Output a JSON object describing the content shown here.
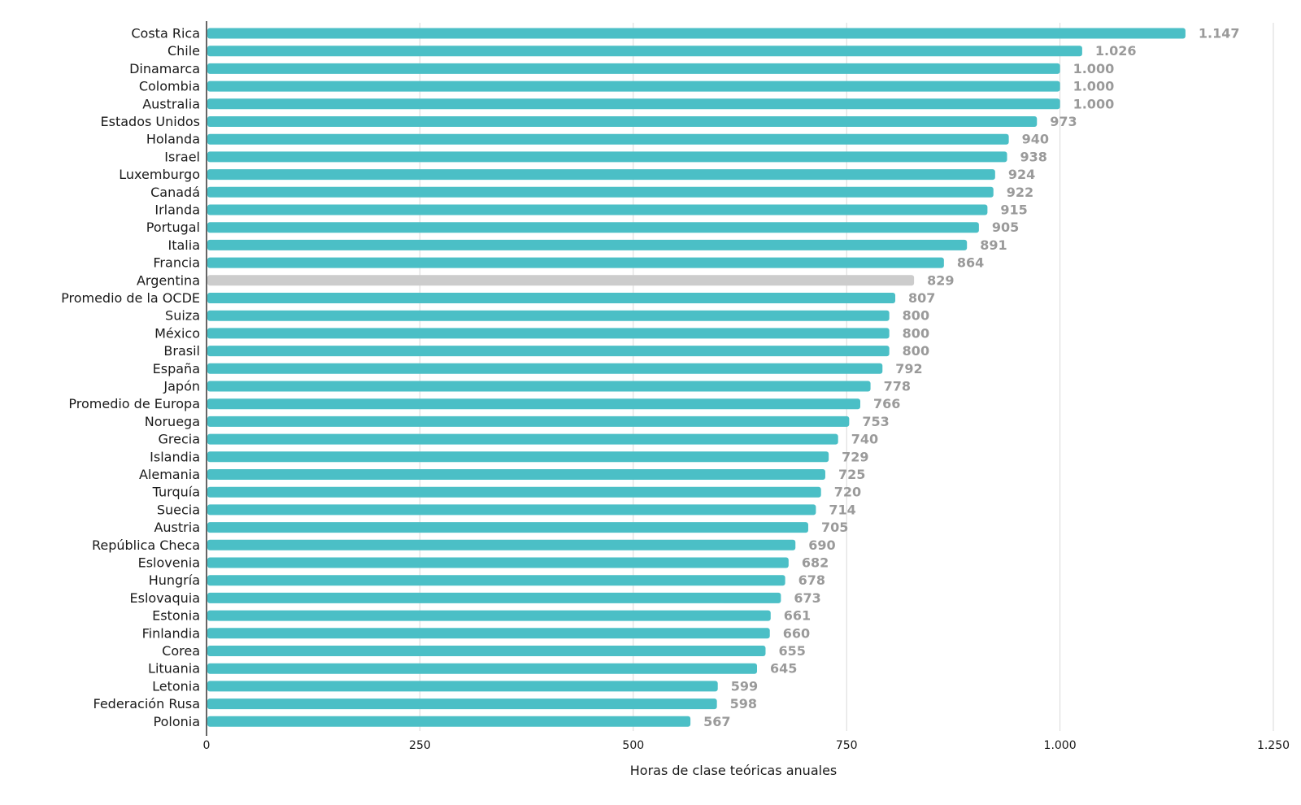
{
  "chart_data": {
    "type": "bar",
    "orientation": "horizontal",
    "xlabel": "Horas de clase teóricas anuales",
    "xlim": [
      0,
      1250
    ],
    "xticks": [
      0,
      250,
      500,
      750,
      1000,
      1250
    ],
    "xtick_labels": [
      "0",
      "250",
      "500",
      "750",
      "1.000",
      "1.250"
    ],
    "grid": true,
    "colors": {
      "bar": "#4bbfc6",
      "highlight": "#cccccc",
      "value_label": "#9a9a9a"
    },
    "highlight_category": "Argentina",
    "categories": [
      "Costa Rica",
      "Chile",
      "Dinamarca",
      "Colombia",
      "Australia",
      "Estados Unidos",
      "Holanda",
      "Israel",
      "Luxemburgo",
      "Canadá",
      "Irlanda",
      "Portugal",
      "Italia",
      "Francia",
      "Argentina",
      "Promedio de la OCDE",
      "Suiza",
      "México",
      "Brasil",
      "España",
      "Japón",
      "Promedio de Europa",
      "Noruega",
      "Grecia",
      "Islandia",
      "Alemania",
      "Turquía",
      "Suecia",
      "Austria",
      "República Checa",
      "Eslovenia",
      "Hungría",
      "Eslovaquia",
      "Estonia",
      "Finlandia",
      "Corea",
      "Lituania",
      "Letonia",
      "Federación Rusa",
      "Polonia"
    ],
    "values": [
      1147,
      1026,
      1000,
      1000,
      1000,
      973,
      940,
      938,
      924,
      922,
      915,
      905,
      891,
      864,
      829,
      807,
      800,
      800,
      800,
      792,
      778,
      766,
      753,
      740,
      729,
      725,
      720,
      714,
      705,
      690,
      682,
      678,
      673,
      661,
      660,
      655,
      645,
      599,
      598,
      567
    ],
    "value_labels": [
      "1.147",
      "1.026",
      "1.000",
      "1.000",
      "1.000",
      "973",
      "940",
      "938",
      "924",
      "922",
      "915",
      "905",
      "891",
      "864",
      "829",
      "807",
      "800",
      "800",
      "800",
      "792",
      "778",
      "766",
      "753",
      "740",
      "729",
      "725",
      "720",
      "714",
      "705",
      "690",
      "682",
      "678",
      "673",
      "661",
      "660",
      "655",
      "645",
      "599",
      "598",
      "567"
    ]
  }
}
